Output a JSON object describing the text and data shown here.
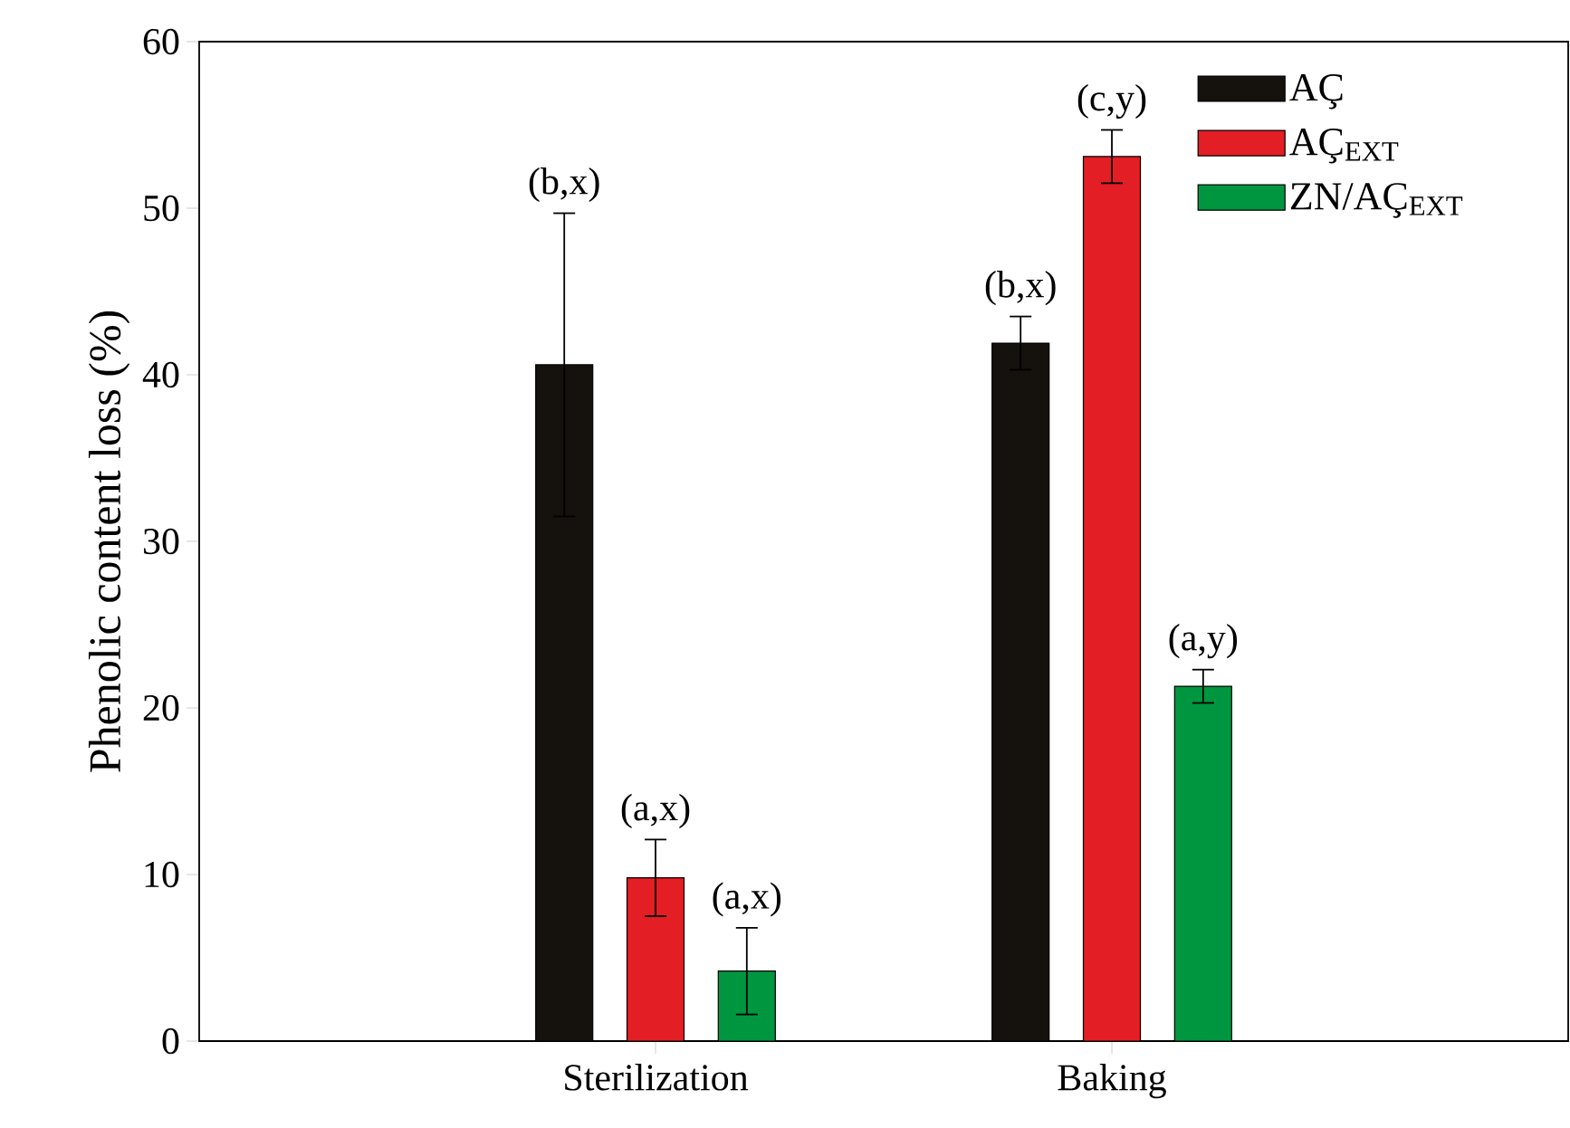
{
  "chart_data": {
    "type": "bar",
    "ylabel": "Phenolic content loss (%)",
    "categories": [
      "Sterilization",
      "Baking"
    ],
    "series": [
      {
        "name": "AÇ",
        "color": "#15120d",
        "values": [
          40.6,
          41.9
        ],
        "errors": [
          9.1,
          1.6
        ]
      },
      {
        "name": "AÇ$_{EXT}$",
        "color": "#e31e24",
        "values": [
          9.8,
          53.1
        ],
        "errors": [
          2.3,
          1.6
        ]
      },
      {
        "name": "ZN/AÇ$_{EXT}$",
        "color": "#009640",
        "values": [
          4.2,
          21.3
        ],
        "errors": [
          2.6,
          1.0
        ]
      }
    ],
    "annotations": [
      "(b,x)",
      "(b,x)",
      "(a,x)",
      "(c,y)",
      "(a,x)",
      "(a,y)"
    ],
    "ylim": [
      0,
      60
    ],
    "yticks": [
      0,
      10,
      20,
      30,
      40,
      50,
      60
    ],
    "legend": "top right",
    "grid": false
  }
}
